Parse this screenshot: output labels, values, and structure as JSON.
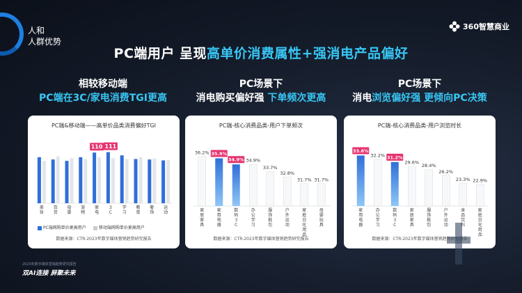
{
  "corner": {
    "line1": "人和",
    "line2": "人群优势"
  },
  "logo": {
    "text": "360智慧商业"
  },
  "title": {
    "prefix": "PC端用户  呈现",
    "accent": "高单价消费属性+强消电产品偏好"
  },
  "columns": [
    {
      "head": "相较移动端",
      "sub_a": "PC端在3C/家电",
      "sub_b": "消费TGI更高"
    },
    {
      "head": "PC场景下",
      "sub_a": "消电购买偏好强",
      "sub_b": "  下单频次更高"
    },
    {
      "head": "PC场景下",
      "sub_a": "消电",
      "sub_b": "浏览偏好强",
      "sub_c": " 更倾向PC决策"
    }
  ],
  "chart_data": [
    {
      "type": "bar",
      "title": "PC端&移动端——高单价品类消费偏好TGI",
      "categories": [
        "美妆",
        "百货",
        "母婴",
        "宠物",
        "家电",
        "3C",
        "学习",
        "教育",
        "奢饰",
        "运动"
      ],
      "series": [
        {
          "name": "PC端网购单价更高用户",
          "values": [
            100,
            95,
            92,
            100,
            110,
            111,
            104,
            96,
            95,
            93
          ],
          "color": "#2f6fd8"
        },
        {
          "name": "移动端网购单价更高用户",
          "values": [
            92,
            102,
            98,
            96,
            100,
            98,
            96,
            100,
            97,
            94
          ],
          "color": "#e3e5ea"
        }
      ],
      "data_labels": {
        "4": "110",
        "5": "111"
      },
      "ylim": [
        0,
        130
      ],
      "source": "数据来源：CTR-2023年数字媒体营销趋势研究报告"
    },
    {
      "type": "bar",
      "title": "PC端-核心消费品类-用户下单频次",
      "categories": [
        "家居家具",
        "家用电器",
        "数码3C",
        "办公学习",
        "服饰鞋包",
        "户外运动",
        "家庭日化用品",
        "母婴玩具"
      ],
      "values": [
        36.2,
        35.9,
        34.9,
        34.9,
        33.7,
        32.8,
        31.7,
        31.7
      ],
      "labels": [
        "36.2%",
        "35.9%",
        "34.9%",
        "34.9%",
        "33.7%",
        "32.8%",
        "31.7%",
        "31.7%"
      ],
      "highlight": [
        1,
        2
      ],
      "ylim": [
        28,
        37
      ],
      "source": "数据来源：CTR-2023年数字媒体营销趋势研究报告"
    },
    {
      "type": "bar",
      "title": "PC端-核心消费品类-用户浏览时长",
      "categories": [
        "家用电器",
        "办公学习",
        "数码3C",
        "家居家具",
        "服饰鞋包",
        "户外运动",
        "食品饮料",
        "家庭日化用品"
      ],
      "values": [
        33.6,
        32.2,
        31.2,
        29.6,
        28.4,
        26.2,
        23.3,
        22.9
      ],
      "labels": [
        "33.6%",
        "32.2%",
        "31.2%",
        "29.6%",
        "28.4%",
        "26.2%",
        "23.3%",
        "22.9%"
      ],
      "highlight": [
        0,
        2
      ],
      "ylim": [
        15,
        35
      ],
      "source": "数据来源：CTR-2023年数字媒体营销趋势研究报告"
    }
  ],
  "footer": {
    "small": "2023年数字媒体营销趋势研究报告",
    "big": "双AI连接  屏聚未来"
  },
  "colors": {
    "blue": "#2f6fd8",
    "blue_light": "#6fb3f5",
    "white_bar": "#ffffff",
    "grey_bar": "#e3e5ea",
    "pink": "#e6336f",
    "accent": "#38c6f4"
  }
}
